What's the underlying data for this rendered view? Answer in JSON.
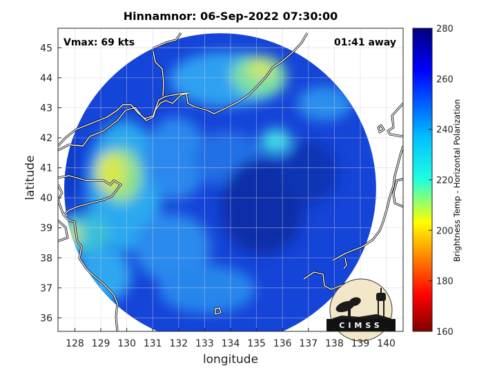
{
  "title": "Hinnamnor: 06-Sep-2022 07:30:00",
  "vmax_label": "Vmax: 69 kts",
  "away_label": "01:41 away",
  "map": {
    "xlabel": "longitude",
    "ylabel": "latitude",
    "lon_range": [
      127.35,
      140.65
    ],
    "lat_range": [
      35.55,
      45.65
    ],
    "lon_ticks": [
      128,
      129,
      130,
      131,
      132,
      133,
      134,
      135,
      136,
      137,
      138,
      139,
      140
    ],
    "lat_ticks": [
      36,
      37,
      38,
      39,
      40,
      41,
      42,
      43,
      44,
      45
    ],
    "swath_center": [
      133.6,
      40.3
    ],
    "swath_radius_deg": 6.1,
    "grid": true
  },
  "colorbar": {
    "label": "Brightness Temp - Horizontal Polarization",
    "ticks": [
      160,
      180,
      200,
      220,
      240,
      260,
      280
    ],
    "range": [
      160,
      280
    ],
    "colormap": "jet"
  },
  "logo": {
    "text": "CIMSS"
  },
  "colors": {
    "coastline": "#ffffff",
    "coastline_outline": "#000000",
    "swath_dominant": "#1040d0"
  }
}
